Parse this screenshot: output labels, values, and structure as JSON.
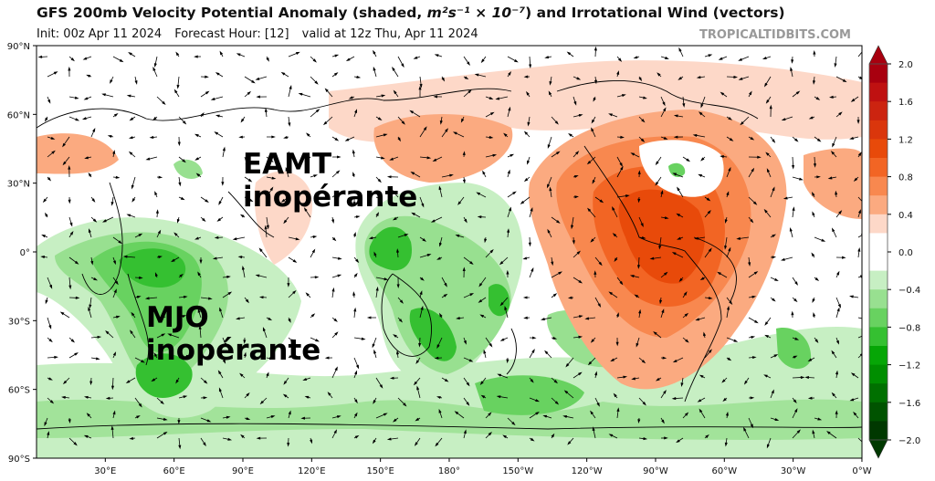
{
  "header": {
    "title_prefix": "GFS 200mb Velocity Potential Anomaly (shaded, ",
    "units": "m²s⁻¹ × 10⁻⁷",
    "title_suffix": ") and Irrotational Wind (vectors)",
    "init": "Init: 00z Apr 11 2024",
    "forecast_hour": "Forecast Hour: [12]",
    "valid": "valid at 12z Thu, Apr 11 2024",
    "credit": "TROPICALTIDBITS.COM"
  },
  "map": {
    "lat_labels": [
      "90°N",
      "60°N",
      "30°N",
      "0°",
      "30°S",
      "60°S",
      "90°S"
    ],
    "lon_labels": [
      "30°E",
      "60°E",
      "90°E",
      "120°E",
      "150°E",
      "180°",
      "150°W",
      "120°W",
      "90°W",
      "60°W",
      "30°W",
      "0°W"
    ]
  },
  "annotations": [
    {
      "line1": "EAMT",
      "line2": "inopérante"
    },
    {
      "line1": "MJO",
      "line2": "inopérante"
    }
  ],
  "colorbar": {
    "tick_labels": [
      "2.0",
      "1.6",
      "1.2",
      "0.8",
      "0.4",
      "0.0",
      "−0.4",
      "−0.8",
      "−1.2",
      "−1.6",
      "−2.0"
    ],
    "colors": [
      "#a8000f",
      "#bf1111",
      "#cc2410",
      "#da360c",
      "#e84a0a",
      "#f26524",
      "#f8884f",
      "#fbaa80",
      "#fdd8c8",
      "#ffffff",
      "#ffffff",
      "#c7efc3",
      "#98e090",
      "#68d260",
      "#35c031",
      "#06a606",
      "#008e00",
      "#007000",
      "#005300",
      "#003800"
    ]
  }
}
